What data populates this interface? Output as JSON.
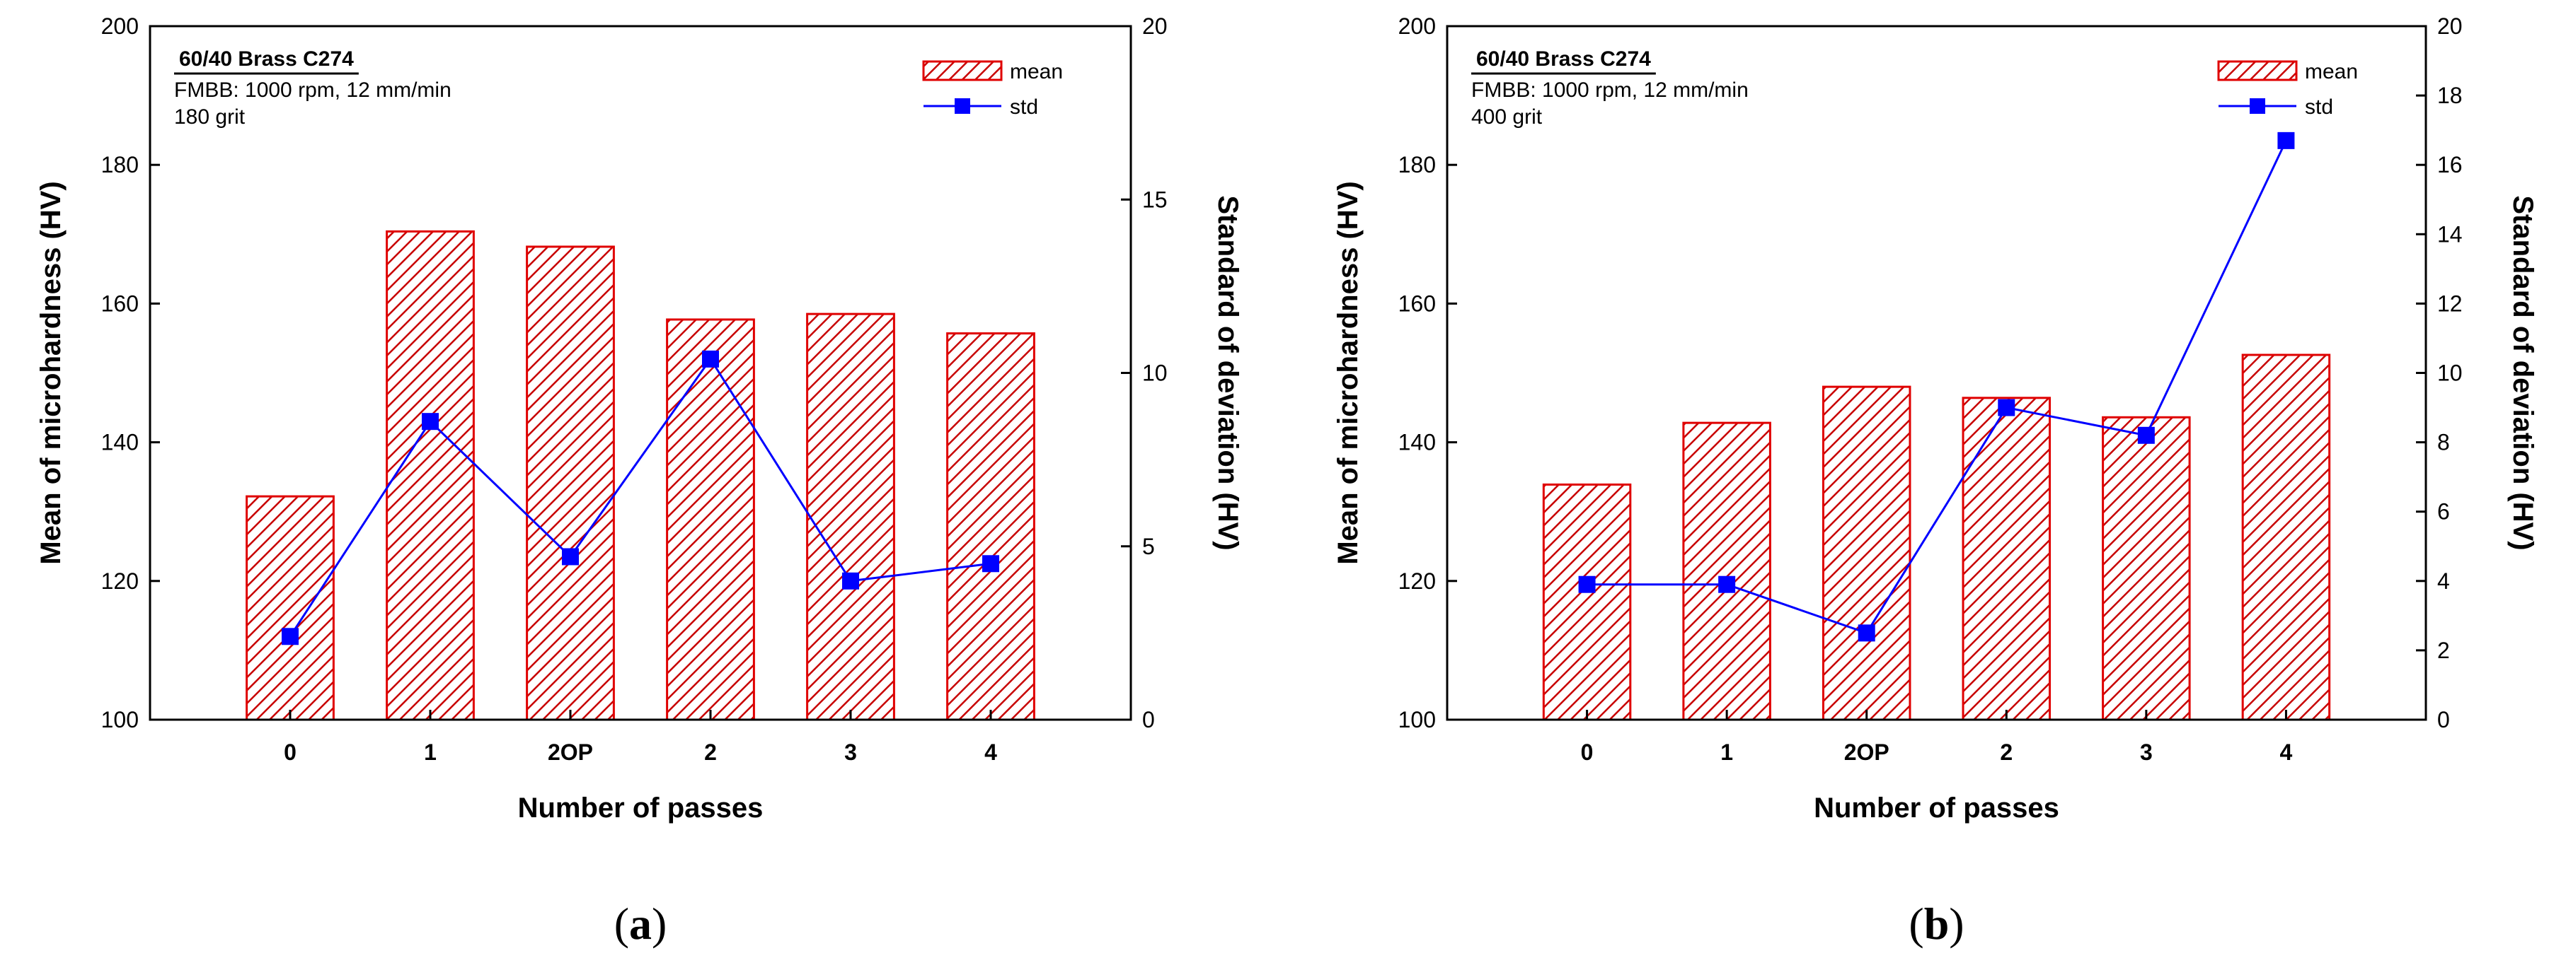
{
  "figure": {
    "colors": {
      "bar_stroke": "#e00000",
      "bar_hatch": "#c80000",
      "bar_bg": "#ffffff",
      "line": "#0000ff",
      "marker": "#0000ff",
      "axis": "#000000"
    }
  },
  "chart_data": [
    {
      "type": "bar",
      "panel_label": "a",
      "annotation": {
        "title": "60/40 Brass C274",
        "line2": "FMBB: 1000 rpm, 12 mm/min",
        "line3": "180 grit"
      },
      "legend": {
        "position": "top-right",
        "bar_label": "mean",
        "line_label": "std"
      },
      "xlabel": "Number of passes",
      "ylabel": "Mean of microhardness (HV)",
      "y2label": "Standard of deviation (HV)",
      "categories": [
        "0",
        "1",
        "2OP",
        "2",
        "3",
        "4"
      ],
      "ylim": [
        100,
        200
      ],
      "yticks": [
        100,
        120,
        140,
        160,
        180,
        200
      ],
      "y2lim": [
        0,
        20
      ],
      "y2ticks": [
        0,
        5,
        10,
        15,
        20
      ],
      "series": [
        {
          "name": "mean",
          "type": "bar",
          "axis": "left",
          "values": [
            132.2,
            170.4,
            168.2,
            157.7,
            158.5,
            155.7
          ]
        },
        {
          "name": "std",
          "type": "line",
          "axis": "right",
          "values": [
            2.4,
            8.6,
            4.7,
            10.4,
            4.0,
            4.5
          ]
        }
      ]
    },
    {
      "type": "bar",
      "panel_label": "b",
      "annotation": {
        "title": "60/40 Brass C274",
        "line2": "FMBB: 1000 rpm, 12 mm/min",
        "line3": "400 grit"
      },
      "legend": {
        "position": "top-right",
        "bar_label": "mean",
        "line_label": "std"
      },
      "xlabel": "Number of passes",
      "ylabel": "Mean of microhardness (HV)",
      "y2label": "Standard of deviation (HV)",
      "categories": [
        "0",
        "1",
        "2OP",
        "2",
        "3",
        "4"
      ],
      "ylim": [
        100,
        200
      ],
      "yticks": [
        100,
        120,
        140,
        160,
        180,
        200
      ],
      "y2lim": [
        0,
        20
      ],
      "y2ticks": [
        0,
        2,
        4,
        6,
        8,
        10,
        12,
        14,
        16,
        18,
        20
      ],
      "series": [
        {
          "name": "mean",
          "type": "bar",
          "axis": "left",
          "values": [
            133.9,
            142.8,
            148.0,
            146.4,
            143.6,
            152.6
          ]
        },
        {
          "name": "std",
          "type": "line",
          "axis": "right",
          "values": [
            3.9,
            3.9,
            2.5,
            9.0,
            8.2,
            16.7
          ]
        }
      ]
    }
  ]
}
